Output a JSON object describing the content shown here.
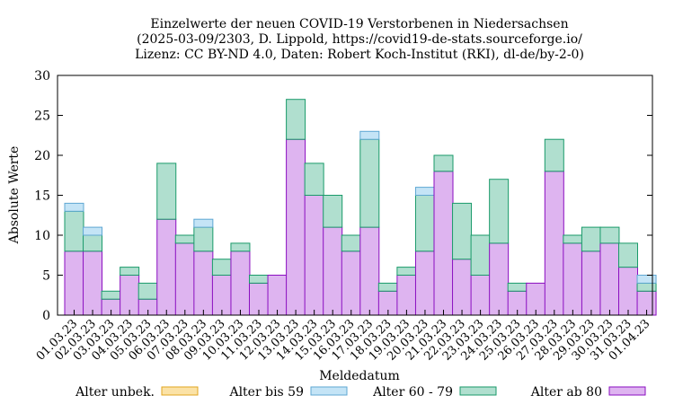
{
  "chart_data": {
    "type": "bar",
    "stacked": true,
    "title": [
      "Einzelwerte der neuen COVID-19 Verstorbenen in Niedersachsen",
      "(2025-03-09/2303, D. Lippold, https://covid19-de-stats.sourceforge.io/",
      "Lizenz: CC BY-ND 4.0, Daten: Robert Koch-Institut (RKI), dl-de/by-2-0)"
    ],
    "xlabel": "Meldedatum",
    "ylabel": "Absolute Werte",
    "ylim": [
      0,
      30
    ],
    "yticks": [
      0,
      5,
      10,
      15,
      20,
      25,
      30
    ],
    "grid": false,
    "legend_position": "bottom",
    "categories": [
      "01.03.23",
      "02.03.23",
      "03.03.23",
      "04.03.23",
      "05.03.23",
      "06.03.23",
      "07.03.23",
      "08.03.23",
      "09.03.23",
      "10.03.23",
      "11.03.23",
      "12.03.23",
      "13.03.23",
      "14.03.23",
      "15.03.23",
      "16.03.23",
      "17.03.23",
      "18.03.23",
      "19.03.23",
      "20.03.23",
      "21.03.23",
      "22.03.23",
      "23.03.23",
      "24.03.23",
      "25.03.23",
      "26.03.23",
      "27.03.23",
      "28.03.23",
      "29.03.23",
      "30.03.23",
      "31.03.23",
      "01.04.23"
    ],
    "series": [
      {
        "name": "Alter ab 80",
        "fill": "#deb4f0",
        "stroke": "#8a0ec0",
        "values": [
          8,
          8,
          2,
          5,
          2,
          12,
          9,
          8,
          5,
          8,
          4,
          5,
          22,
          15,
          11,
          8,
          11,
          3,
          5,
          8,
          18,
          7,
          5,
          9,
          3,
          4,
          18,
          9,
          8,
          9,
          6,
          3
        ]
      },
      {
        "name": "Alter 60 - 79",
        "fill": "#b0dfcf",
        "stroke": "#1a9a6a",
        "values": [
          5,
          2,
          1,
          1,
          2,
          7,
          1,
          3,
          2,
          1,
          1,
          0,
          5,
          4,
          4,
          2,
          11,
          1,
          1,
          7,
          2,
          7,
          5,
          8,
          1,
          0,
          4,
          1,
          3,
          2,
          3,
          1
        ]
      },
      {
        "name": "Alter bis 59",
        "fill": "#c4e4f6",
        "stroke": "#5fa7d3",
        "values": [
          1,
          1,
          0,
          0,
          0,
          0,
          0,
          1,
          0,
          0,
          0,
          0,
          0,
          0,
          0,
          0,
          1,
          0,
          0,
          1,
          0,
          0,
          0,
          0,
          0,
          0,
          0,
          0,
          0,
          0,
          0,
          1
        ]
      },
      {
        "name": "Alter unbek.",
        "fill": "#fbe2a6",
        "stroke": "#e0a520",
        "values": [
          0,
          0,
          0,
          0,
          0,
          0,
          0,
          0,
          0,
          0,
          0,
          0,
          0,
          0,
          0,
          0,
          0,
          0,
          0,
          0,
          0,
          0,
          0,
          0,
          0,
          0,
          0,
          0,
          0,
          0,
          0,
          0
        ]
      }
    ],
    "legend_order": [
      "Alter unbek.",
      "Alter bis 59",
      "Alter 60 - 79",
      "Alter ab 80"
    ]
  }
}
